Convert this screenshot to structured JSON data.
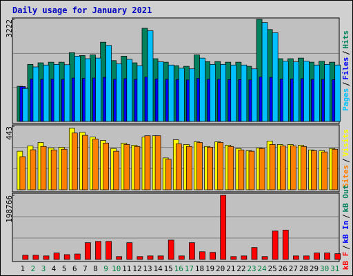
{
  "chart_data": [
    {
      "type": "bar",
      "title": "Daily usage for January 2021",
      "ylim": [
        0,
        3222
      ],
      "yticks": [
        3222
      ],
      "series": [
        {
          "name": "Pages",
          "color": "#00c0ff",
          "values": [
            1040,
            1720,
            1780,
            1800,
            1790,
            2060,
            1980,
            2000,
            2400,
            1820,
            1960,
            1760,
            2860,
            1880,
            1780,
            1680,
            1660,
            2000,
            1800,
            1800,
            1780,
            1780,
            1660,
            3120,
            2800,
            1900,
            1880,
            1900,
            1780,
            1800,
            1780
          ]
        },
        {
          "name": "Files",
          "color": "#0000ff",
          "values": [
            1100,
            1340,
            1330,
            1340,
            1330,
            1370,
            1360,
            1370,
            1390,
            1330,
            1350,
            1330,
            1400,
            1340,
            1330,
            1320,
            1310,
            1360,
            1330,
            1330,
            1320,
            1320,
            1310,
            1400,
            1390,
            1340,
            1340,
            1350,
            1330,
            1330,
            1320
          ]
        },
        {
          "name": "Hits",
          "color": "#00805c",
          "values": [
            1110,
            1800,
            1850,
            1870,
            1870,
            2170,
            2080,
            2100,
            2500,
            1920,
            2060,
            1850,
            2940,
            1980,
            1870,
            1760,
            1740,
            2100,
            1890,
            1890,
            1870,
            1870,
            1740,
            3222,
            2900,
            1980,
            1980,
            2000,
            1870,
            1900,
            1870
          ]
        }
      ]
    },
    {
      "type": "bar",
      "ylim": [
        0,
        443
      ],
      "yticks": [
        443
      ],
      "series": [
        {
          "name": "Sites",
          "color": "#ff8000",
          "values": [
            231,
            279,
            302,
            278,
            283,
            396,
            380,
            354,
            326,
            269,
            316,
            302,
            377,
            377,
            213,
            321,
            302,
            330,
            297,
            330,
            302,
            278,
            269,
            288,
            316,
            306,
            307,
            302,
            273,
            264,
            283
          ]
        },
        {
          "name": "Visits",
          "color": "#ffff00",
          "values": [
            269,
            306,
            330,
            292,
            297,
            429,
            401,
            368,
            344,
            288,
            325,
            311,
            368,
            377,
            222,
            349,
            316,
            335,
            302,
            335,
            311,
            288,
            273,
            292,
            340,
            316,
            316,
            311,
            278,
            273,
            288
          ]
        }
      ]
    },
    {
      "type": "bar",
      "ylim": [
        0,
        198766
      ],
      "yticks": [
        198766
      ],
      "categories": [
        "1",
        "2",
        "3",
        "4",
        "5",
        "6",
        "7",
        "8",
        "9",
        "10",
        "11",
        "12",
        "13",
        "14",
        "15",
        "16",
        "17",
        "18",
        "19",
        "20",
        "21",
        "22",
        "23",
        "24",
        "25",
        "26",
        "27",
        "28",
        "29",
        "30",
        "31"
      ],
      "category_colors": [
        "#000000",
        "#008040",
        "#008040",
        "#000000",
        "#000000",
        "#000000",
        "#000000",
        "#000000",
        "#008040",
        "#008040",
        "#000000",
        "#000000",
        "#000000",
        "#000000",
        "#000000",
        "#008040",
        "#008040",
        "#000000",
        "#000000",
        "#000000",
        "#000000",
        "#000000",
        "#008040",
        "#008040",
        "#000000",
        "#000000",
        "#000000",
        "#000000",
        "#000000",
        "#008040",
        "#008040"
      ],
      "series": [
        {
          "name": "kB F",
          "color": "#ff0000",
          "values": [
            13000,
            13000,
            11000,
            20000,
            15000,
            17000,
            52000,
            56000,
            56000,
            9000,
            52000,
            9000,
            11000,
            11000,
            60000,
            11000,
            52000,
            24000,
            22000,
            198766,
            9000,
            11000,
            37000,
            9000,
            88000,
            91000,
            11000,
            11000,
            20000,
            20000,
            18000
          ]
        },
        {
          "name": "kB In",
          "color": "#0000ff",
          "values": [
            0,
            0,
            0,
            0,
            0,
            0,
            0,
            0,
            0,
            0,
            0,
            0,
            0,
            0,
            0,
            0,
            0,
            0,
            0,
            0,
            0,
            0,
            0,
            0,
            0,
            0,
            0,
            0,
            0,
            0,
            0
          ]
        },
        {
          "name": "kB Out",
          "color": "#00805c",
          "values": [
            0,
            0,
            0,
            0,
            0,
            0,
            0,
            0,
            0,
            0,
            0,
            0,
            0,
            0,
            0,
            0,
            0,
            0,
            0,
            0,
            0,
            0,
            0,
            0,
            0,
            0,
            0,
            0,
            0,
            0,
            0
          ]
        }
      ]
    }
  ]
}
